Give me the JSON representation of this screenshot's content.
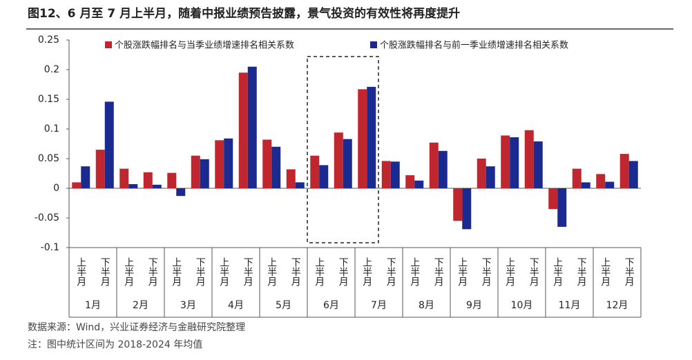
{
  "chart_data": {
    "type": "bar",
    "title": "图12、6 月至 7 月上半月，随着中报业绩预告披露，景气投资的有效性将再度提升",
    "categories": [
      "上半月",
      "下半月",
      "上半月",
      "下半月",
      "上半月",
      "下半月",
      "上半月",
      "下半月",
      "上半月",
      "下半月",
      "上半月",
      "下半月",
      "上半月",
      "下半月",
      "上半月",
      "下半月",
      "上半月",
      "下半月",
      "上半月",
      "下半月",
      "上半月",
      "下半月",
      "上半月",
      "下半月"
    ],
    "group_labels": [
      "1月",
      "2月",
      "3月",
      "4月",
      "5月",
      "6月",
      "7月",
      "8月",
      "9月",
      "10月",
      "11月",
      "12月"
    ],
    "series": [
      {
        "name": "个股涨跌幅排名与当季业绩增速排名相关系数",
        "color": "#c0262d",
        "values": [
          0.01,
          0.065,
          0.033,
          0.027,
          0.026,
          0.055,
          0.081,
          0.195,
          0.082,
          0.032,
          0.055,
          0.094,
          0.167,
          0.046,
          0.022,
          0.077,
          -0.055,
          0.05,
          0.089,
          0.098,
          -0.035,
          0.033,
          0.024,
          0.058
        ]
      },
      {
        "name": "个股涨跌幅排名与前一季业绩增速排名相关系数",
        "color": "#1b2a8e",
        "values": [
          0.037,
          0.146,
          0.007,
          0.006,
          -0.013,
          0.049,
          0.084,
          0.205,
          0.07,
          0.01,
          0.039,
          0.083,
          0.171,
          0.045,
          0.013,
          0.063,
          -0.069,
          0.037,
          0.086,
          0.079,
          -0.065,
          0.01,
          0.011,
          0.046
        ]
      }
    ],
    "ylim": [
      -0.1,
      0.25
    ],
    "yticks": [
      0.25,
      0.2,
      0.15,
      0.1,
      0.05,
      0,
      -0.05,
      -0.1
    ],
    "grid": false,
    "source": "数据来源：Wind，兴业证券经济与金融研究院整理",
    "note": "注：图中统计区间为 2018-2024 年均值"
  }
}
